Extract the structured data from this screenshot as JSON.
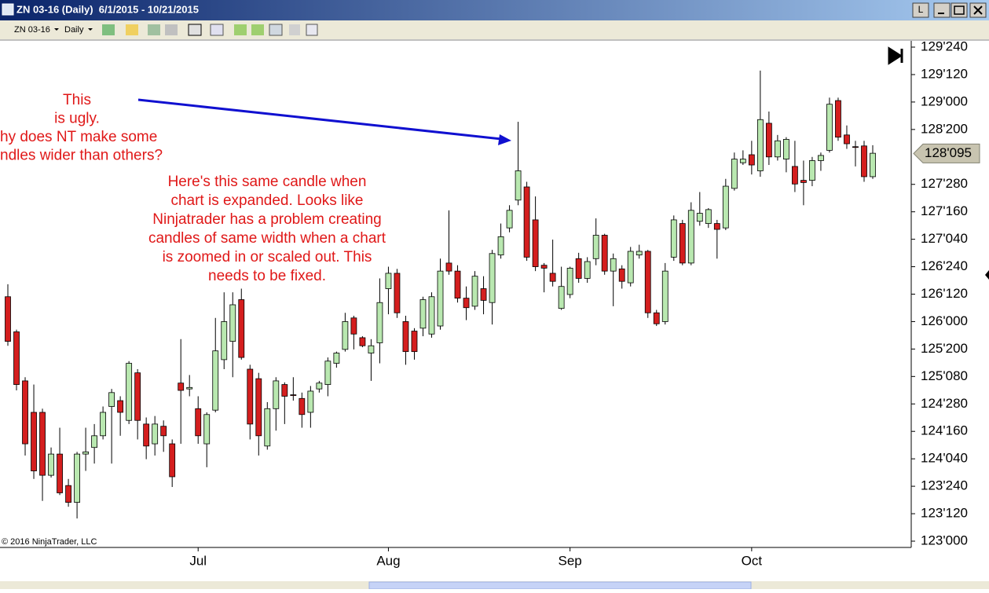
{
  "window": {
    "title": "ZN 03-16 (Daily)  6/1/2015 - 10/21/2015",
    "link_button": "L",
    "toolbar": {
      "instrument": "ZN 03-16",
      "period": "Daily"
    }
  },
  "chart_data": {
    "type": "candlestick",
    "categories": [
      null,
      null,
      null,
      null,
      null,
      null,
      null,
      null,
      null,
      null,
      null,
      null,
      null,
      null,
      null,
      null,
      null,
      null,
      null,
      null,
      null,
      null,
      "Jul",
      null,
      null,
      null,
      null,
      null,
      null,
      null,
      null,
      null,
      null,
      null,
      null,
      null,
      null,
      null,
      null,
      null,
      null,
      null,
      null,
      null,
      "Aug",
      null,
      null,
      null,
      null,
      null,
      null,
      null,
      null,
      null,
      null,
      null,
      null,
      null,
      null,
      null,
      null,
      null,
      null,
      null,
      null,
      "Sep",
      null,
      null,
      null,
      null,
      null,
      null,
      null,
      null,
      null,
      null,
      null,
      null,
      null,
      null,
      null,
      null,
      null,
      null,
      null,
      null,
      "Oct",
      null,
      null,
      null,
      null,
      null,
      null,
      null,
      null,
      null,
      null,
      null,
      null,
      null,
      null
    ],
    "open": [
      126.34,
      125.86,
      125.19,
      124.76,
      124.76,
      123.9,
      124.19,
      123.76,
      123.53,
      124.19,
      124.28,
      124.44,
      124.84,
      124.92,
      124.65,
      125.3,
      124.6,
      124.33,
      124.57,
      124.33,
      125.16,
      125.08,
      124.81,
      124.33,
      124.79,
      125.48,
      125.73,
      126.3,
      125.35,
      125.22,
      124.3,
      124.81,
      125.14,
      125.0,
      124.95,
      124.76,
      125.08,
      125.14,
      125.43,
      125.62,
      126.05,
      125.78,
      125.57,
      125.71,
      126.45,
      126.66,
      126.0,
      125.87,
      125.91,
      125.83,
      125.94,
      126.8,
      126.69,
      126.32,
      126.21,
      126.45,
      126.26,
      126.91,
      127.28,
      127.66,
      127.84,
      127.39,
      126.77,
      126.66,
      126.18,
      126.37,
      126.86,
      126.59,
      126.86,
      127.18,
      126.69,
      126.72,
      126.53,
      126.91,
      126.96,
      126.12,
      126.0,
      126.88,
      127.34,
      126.8,
      127.37,
      127.34,
      127.34,
      127.28,
      127.82,
      128.17,
      128.28,
      128.06,
      128.71,
      128.25,
      128.22,
      128.12,
      127.93,
      127.93,
      128.2,
      128.34,
      129.02,
      128.55,
      128.39,
      128.4,
      127.98
    ],
    "high": [
      126.51,
      125.89,
      125.24,
      125.14,
      124.81,
      124.28,
      124.55,
      123.85,
      124.22,
      124.55,
      124.6,
      124.84,
      125.08,
      124.98,
      125.46,
      125.35,
      124.69,
      124.71,
      124.65,
      124.39,
      125.76,
      125.27,
      124.98,
      124.76,
      126.05,
      126.4,
      126.4,
      126.45,
      125.41,
      125.3,
      124.9,
      125.24,
      125.17,
      125.24,
      125.03,
      125.12,
      125.19,
      125.51,
      125.59,
      126.12,
      126.08,
      125.8,
      125.76,
      126.59,
      126.75,
      126.72,
      126.08,
      125.91,
      126.34,
      126.4,
      126.86,
      127.52,
      126.77,
      126.48,
      126.69,
      126.62,
      126.98,
      127.34,
      127.59,
      128.73,
      127.91,
      127.71,
      126.8,
      127.12,
      126.75,
      126.75,
      126.94,
      126.88,
      127.41,
      127.2,
      126.93,
      126.77,
      127.02,
      127.05,
      126.98,
      126.16,
      126.8,
      127.45,
      127.39,
      127.63,
      127.77,
      127.55,
      127.39,
      127.95,
      128.31,
      128.34,
      128.47,
      129.43,
      128.87,
      128.55,
      128.52,
      128.47,
      128.2,
      128.25,
      128.31,
      129.06,
      129.06,
      128.68,
      128.47,
      128.47,
      128.41
    ],
    "low": [
      125.67,
      125.06,
      124.17,
      123.85,
      123.55,
      123.87,
      123.63,
      123.47,
      123.31,
      123.96,
      124.06,
      124.39,
      124.06,
      124.44,
      124.6,
      124.39,
      124.12,
      124.17,
      124.22,
      123.74,
      124.33,
      124.98,
      124.33,
      124.01,
      124.76,
      125.35,
      125.24,
      125.48,
      124.39,
      124.17,
      124.25,
      124.51,
      124.6,
      124.92,
      124.55,
      124.55,
      125.03,
      124.98,
      125.37,
      125.59,
      125.62,
      125.65,
      125.19,
      125.43,
      126.1,
      126.05,
      125.41,
      125.48,
      125.8,
      125.78,
      125.89,
      126.64,
      126.26,
      126.02,
      126.16,
      126.1,
      125.96,
      126.86,
      127.22,
      127.59,
      126.83,
      126.69,
      126.4,
      126.48,
      126.16,
      126.32,
      126.53,
      126.53,
      126.77,
      126.64,
      126.21,
      126.45,
      126.48,
      126.86,
      126.05,
      125.94,
      125.96,
      126.83,
      126.77,
      126.77,
      127.31,
      127.28,
      126.86,
      127.25,
      127.79,
      128.14,
      128.01,
      127.98,
      128.14,
      128.2,
      128.04,
      127.77,
      127.59,
      127.85,
      128.06,
      128.31,
      128.47,
      128.36,
      128.12,
      127.91,
      127.95
    ],
    "close": [
      125.73,
      125.14,
      124.33,
      123.96,
      123.9,
      124.19,
      123.66,
      123.53,
      124.19,
      124.22,
      124.44,
      124.76,
      125.03,
      124.76,
      125.43,
      124.65,
      124.3,
      124.6,
      124.44,
      123.88,
      125.06,
      125.1,
      124.44,
      124.73,
      125.6,
      126.0,
      126.23,
      125.51,
      124.6,
      124.44,
      124.81,
      125.19,
      124.98,
      124.99,
      124.73,
      125.05,
      125.16,
      125.46,
      125.57,
      126.0,
      125.83,
      125.67,
      125.67,
      126.26,
      126.66,
      126.12,
      125.59,
      125.59,
      126.3,
      126.34,
      126.69,
      126.69,
      126.32,
      126.19,
      126.62,
      126.29,
      126.93,
      127.16,
      127.52,
      128.06,
      126.88,
      126.75,
      126.73,
      126.55,
      126.48,
      126.73,
      126.59,
      126.82,
      127.18,
      126.69,
      126.86,
      126.55,
      126.96,
      126.96,
      126.12,
      125.97,
      126.69,
      127.39,
      126.8,
      127.52,
      127.48,
      127.53,
      127.26,
      127.85,
      128.22,
      128.22,
      128.14,
      128.76,
      128.25,
      128.47,
      128.49,
      127.88,
      127.9,
      128.2,
      128.27,
      128.97,
      128.52,
      128.43,
      128.38,
      127.98,
      128.3
    ],
    "up_color": "#b9e8b0",
    "down_color": "#d41e1e",
    "grid": false,
    "ylim": [
      122.914,
      129.836
    ],
    "yticks": [
      {
        "value": 123,
        "label": "123'000"
      },
      {
        "value": 123.375,
        "label": "123'120"
      },
      {
        "value": 123.75,
        "label": "123'240"
      },
      {
        "value": 124.125,
        "label": "124'040"
      },
      {
        "value": 124.5,
        "label": "124'160"
      },
      {
        "value": 124.875,
        "label": "124'280"
      },
      {
        "value": 125.25,
        "label": "125'080"
      },
      {
        "value": 125.625,
        "label": "125'200"
      },
      {
        "value": 126,
        "label": "126'000"
      },
      {
        "value": 126.375,
        "label": "126'120"
      },
      {
        "value": 126.75,
        "label": "126'240"
      },
      {
        "value": 127.125,
        "label": "127'040"
      },
      {
        "value": 127.5,
        "label": "127'160"
      },
      {
        "value": 127.875,
        "label": "127'280"
      },
      {
        "value": 128.625,
        "label": "128'200"
      },
      {
        "value": 129,
        "label": "129'000"
      },
      {
        "value": 129.375,
        "label": "129'120"
      },
      {
        "value": 129.75,
        "label": "129'240"
      }
    ],
    "last_price": {
      "value": 128.296875,
      "label": "128'095"
    },
    "annotation_left": [
      "This",
      "is ugly.",
      "hy does NT make some",
      "ndles wider than others?"
    ],
    "annotation_main": [
      "Here's this same candle when",
      "chart is expanded. Looks  like",
      "Ninjatrader has a problem creating",
      "candles of same width when a chart",
      "is zoomed in or scaled out. This",
      "needs to be fixed."
    ],
    "copyright": "© 2016 NinjaTrader, LLC"
  }
}
